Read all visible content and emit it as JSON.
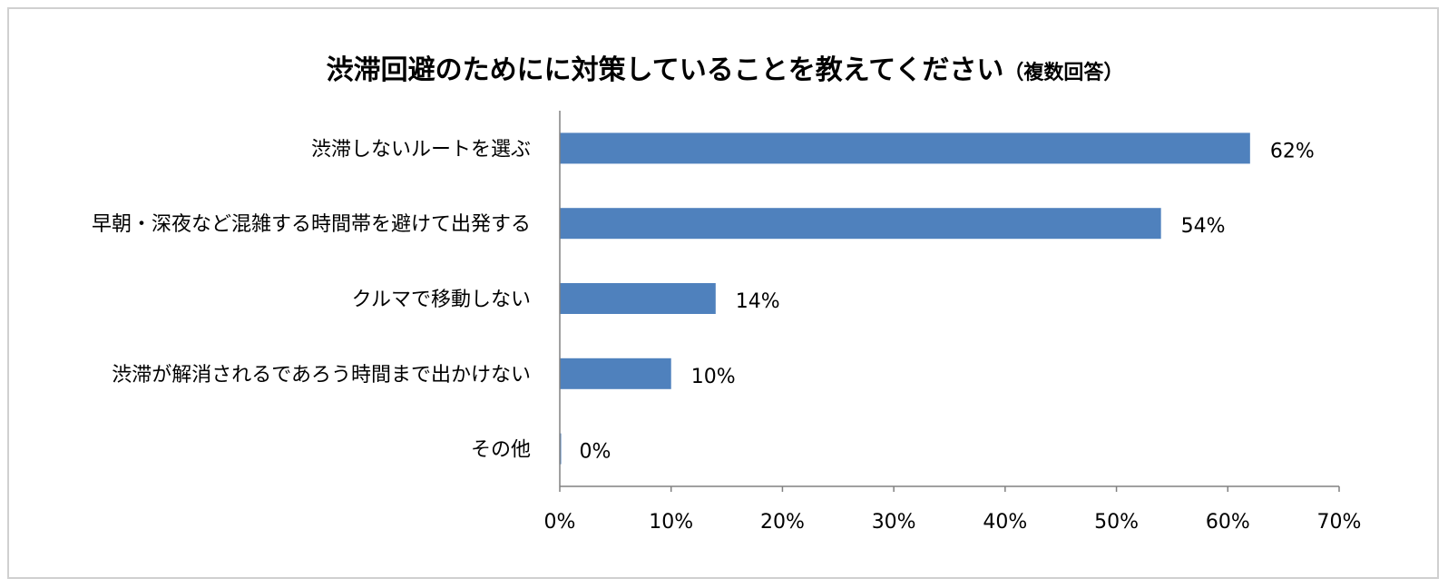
{
  "chart_data": {
    "type": "bar",
    "orientation": "horizontal",
    "title": "渋滞回避のためにに対策していることを教えてください",
    "title_main": "渋滞回避のためにに対策していることを教えてください",
    "title_sub": "（複数回答）",
    "categories": [
      "渋滞しないルートを選ぶ",
      "早朝・深夜など混雑する時間帯を避けて出発する",
      "クルマで移動しない",
      "渋滞が解消されるであろう時間まで出かけない",
      "その他"
    ],
    "values": [
      62,
      54,
      14,
      10,
      0
    ],
    "data_labels": [
      "62%",
      "54%",
      "14%",
      "10%",
      "0%"
    ],
    "xlim": [
      0,
      70
    ],
    "x_ticks": [
      0,
      10,
      20,
      30,
      40,
      50,
      60,
      70
    ],
    "x_tick_labels": [
      "0%",
      "10%",
      "20%",
      "30%",
      "40%",
      "50%",
      "60%",
      "70%"
    ],
    "xlabel": "",
    "ylabel": "",
    "grid": false,
    "legend": "none",
    "colors": {
      "bar": "#4f81bd",
      "axis": "#808080",
      "frame": "#d0d0d0"
    }
  }
}
